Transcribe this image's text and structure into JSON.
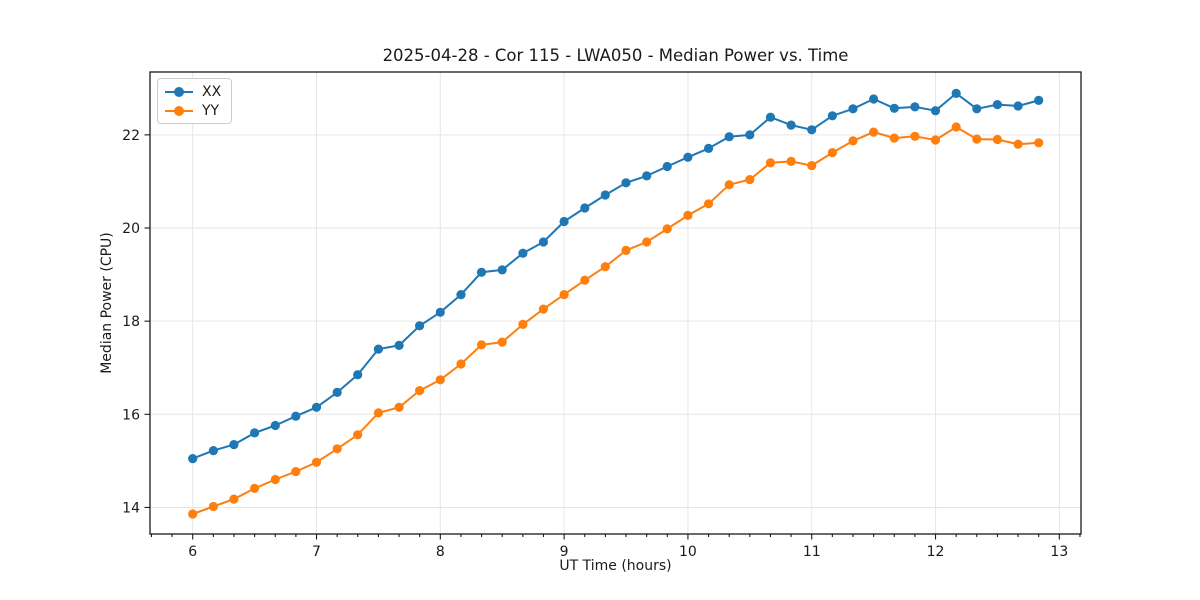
{
  "figure": {
    "background": "#ffffff",
    "text_color": "#1a1a1a",
    "grid_color": "#e6e6e6",
    "spine_color": "#1a1a1a"
  },
  "chart_data": {
    "type": "line",
    "title": "2025-04-28 - Cor 115 - LWA050 - Median Power vs. Time",
    "xlabel": "UT Time (hours)",
    "ylabel": "Median Power (CPU)",
    "xlim": [
      5.655,
      13.175
    ],
    "ylim": [
      13.43,
      23.35
    ],
    "xticks": [
      6,
      7,
      8,
      9,
      10,
      11,
      12,
      13
    ],
    "yticks": [
      14,
      16,
      18,
      20,
      22
    ],
    "x_minor_step": 0.1666667,
    "grid": true,
    "legend_position": "upper-left",
    "marker": "circle",
    "x": [
      6.0,
      6.167,
      6.333,
      6.5,
      6.667,
      6.833,
      7.0,
      7.167,
      7.333,
      7.5,
      7.667,
      7.833,
      8.0,
      8.167,
      8.333,
      8.5,
      8.667,
      8.833,
      9.0,
      9.167,
      9.333,
      9.5,
      9.667,
      9.833,
      10.0,
      10.167,
      10.333,
      10.5,
      10.667,
      10.833,
      11.0,
      11.167,
      11.333,
      11.5,
      11.667,
      11.833,
      12.0,
      12.167,
      12.333,
      12.5,
      12.667,
      12.833
    ],
    "series": [
      {
        "name": "XX",
        "color": "#1f77b4",
        "values": [
          15.05,
          15.22,
          15.35,
          15.6,
          15.76,
          15.96,
          16.15,
          16.47,
          16.85,
          17.4,
          17.48,
          17.9,
          18.19,
          18.57,
          19.05,
          19.1,
          19.46,
          19.7,
          20.14,
          20.43,
          20.71,
          20.97,
          21.12,
          21.32,
          21.52,
          21.71,
          21.96,
          22.0,
          22.38,
          22.21,
          22.11,
          22.41,
          22.56,
          22.77,
          22.57,
          22.6,
          22.52,
          22.89,
          22.56,
          22.65,
          22.62,
          22.74
        ]
      },
      {
        "name": "YY",
        "color": "#ff7f0e",
        "values": [
          13.86,
          14.02,
          14.18,
          14.41,
          14.6,
          14.77,
          14.97,
          15.26,
          15.56,
          16.03,
          16.15,
          16.51,
          16.74,
          17.08,
          17.49,
          17.55,
          17.93,
          18.26,
          18.57,
          18.88,
          19.17,
          19.52,
          19.7,
          19.98,
          20.27,
          20.52,
          20.93,
          21.04,
          21.4,
          21.43,
          21.34,
          21.62,
          21.87,
          22.06,
          21.93,
          21.97,
          21.89,
          22.17,
          21.91,
          21.9,
          21.8,
          21.83
        ]
      }
    ]
  }
}
